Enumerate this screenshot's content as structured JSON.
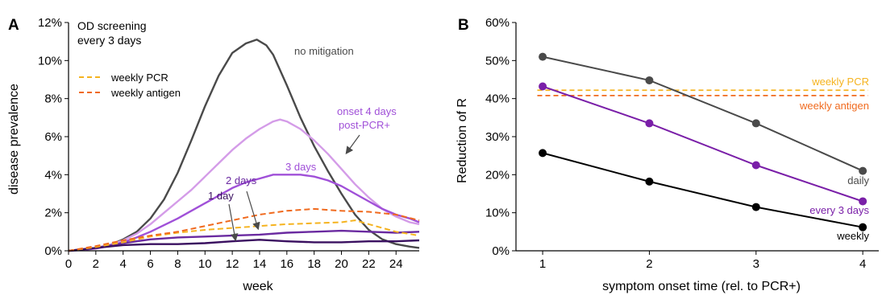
{
  "chart_data": [
    {
      "type": "line",
      "panel_label": "A",
      "xlabel": "week",
      "ylabel": "disease prevalence",
      "xlim": [
        0,
        25.7
      ],
      "ylim": [
        0,
        12
      ],
      "y_unit_suffix": "%",
      "x_ticks": [
        0,
        2,
        4,
        6,
        8,
        10,
        12,
        14,
        16,
        18,
        20,
        22,
        24
      ],
      "y_ticks": [
        0,
        2,
        4,
        6,
        8,
        10,
        12
      ],
      "legend_title": "OD screening\nevery 3 days",
      "legend_title_lines": [
        "OD screening",
        "every 3 days"
      ],
      "legend_placement": "top-left",
      "legend": [
        {
          "name": "weekly PCR",
          "color": "#f5b31f",
          "dashed": true
        },
        {
          "name": "weekly antigen",
          "color": "#f06a1e",
          "dashed": true
        }
      ],
      "series": [
        {
          "name": "no mitigation",
          "color": "#4a4a4a",
          "dashed": false,
          "x": [
            0,
            1,
            2,
            3,
            4,
            5,
            6,
            7,
            8,
            9,
            10,
            11,
            12,
            13,
            13.8,
            14.5,
            15,
            16,
            17,
            18,
            19,
            20,
            21,
            22,
            23,
            24,
            25,
            25.7
          ],
          "values": [
            0,
            0.05,
            0.15,
            0.3,
            0.6,
            1.0,
            1.7,
            2.7,
            4.1,
            5.8,
            7.6,
            9.2,
            10.4,
            10.9,
            11.1,
            10.8,
            10.3,
            8.7,
            7.0,
            5.5,
            4.2,
            3.0,
            1.9,
            1.1,
            0.6,
            0.35,
            0.22,
            0.15
          ]
        },
        {
          "name": "onset 4 days post-PCR+",
          "color": "#d49ce8",
          "dashed": false,
          "x": [
            0,
            1,
            2,
            3,
            4,
            5,
            6,
            7,
            8,
            9,
            10,
            11,
            12,
            13,
            14,
            15,
            15.5,
            16,
            17,
            18,
            19,
            20,
            21,
            22,
            23,
            24,
            25,
            25.7
          ],
          "values": [
            0,
            0.05,
            0.15,
            0.3,
            0.55,
            0.9,
            1.4,
            2.0,
            2.6,
            3.2,
            3.9,
            4.6,
            5.3,
            5.9,
            6.4,
            6.8,
            6.9,
            6.8,
            6.4,
            5.8,
            5.1,
            4.3,
            3.5,
            2.8,
            2.2,
            1.8,
            1.5,
            1.4
          ]
        },
        {
          "name": "3 days",
          "color": "#a050d8",
          "dashed": false,
          "x": [
            0,
            1,
            2,
            3,
            4,
            5,
            6,
            7,
            8,
            9,
            10,
            11,
            12,
            13,
            14,
            15,
            16,
            17,
            18,
            19,
            20,
            21,
            22,
            23,
            24,
            25,
            25.7
          ],
          "values": [
            0,
            0.04,
            0.12,
            0.25,
            0.45,
            0.7,
            1.0,
            1.35,
            1.7,
            2.1,
            2.5,
            2.9,
            3.3,
            3.6,
            3.8,
            4.0,
            4.0,
            4.0,
            3.9,
            3.7,
            3.4,
            3.0,
            2.6,
            2.2,
            1.9,
            1.7,
            1.5
          ]
        },
        {
          "name": "2 days",
          "color": "#6a2aa0",
          "dashed": false,
          "x": [
            0,
            2,
            4,
            6,
            8,
            10,
            12,
            14,
            16,
            18,
            20,
            22,
            24,
            25.7
          ],
          "values": [
            0,
            0.15,
            0.4,
            0.6,
            0.7,
            0.75,
            0.8,
            0.85,
            0.95,
            1.0,
            1.05,
            1.0,
            0.95,
            1.0
          ]
        },
        {
          "name": "1 day",
          "color": "#3a1060",
          "dashed": false,
          "x": [
            0,
            2,
            4,
            6,
            8,
            10,
            12,
            14,
            16,
            18,
            20,
            22,
            24,
            25.7
          ],
          "values": [
            0,
            0.15,
            0.3,
            0.35,
            0.35,
            0.4,
            0.5,
            0.58,
            0.5,
            0.45,
            0.45,
            0.5,
            0.5,
            0.55
          ]
        },
        {
          "name": "weekly PCR",
          "color": "#f5b31f",
          "dashed": true,
          "x": [
            0,
            2,
            4,
            6,
            8,
            10,
            12,
            14,
            16,
            18,
            20,
            21,
            22,
            24,
            25.7
          ],
          "values": [
            0,
            0.2,
            0.45,
            0.75,
            0.95,
            1.1,
            1.2,
            1.3,
            1.4,
            1.45,
            1.5,
            1.6,
            1.4,
            1.0,
            0.8
          ]
        },
        {
          "name": "weekly antigen",
          "color": "#f06a1e",
          "dashed": true,
          "x": [
            0,
            2,
            4,
            6,
            8,
            10,
            12,
            14,
            16,
            18,
            20,
            22,
            24,
            25.7
          ],
          "values": [
            0,
            0.25,
            0.55,
            0.8,
            1.0,
            1.3,
            1.6,
            1.9,
            2.1,
            2.2,
            2.1,
            2.05,
            1.9,
            1.6
          ]
        }
      ],
      "annotations": [
        {
          "text": "no mitigation",
          "color": "#4a4a4a"
        },
        {
          "text": "onset 4 days",
          "color": "#a050d8"
        },
        {
          "text": "post-PCR+",
          "color": "#a050d8"
        },
        {
          "text": "3 days",
          "color": "#a050d8"
        },
        {
          "text": "2 days",
          "color": "#6a2aa0"
        },
        {
          "text": "1 day",
          "color": "#3a1060"
        }
      ]
    },
    {
      "type": "line",
      "panel_label": "B",
      "xlabel": "symptom onset time (rel. to PCR+)",
      "ylabel": "Reduction of R",
      "xlim": [
        0.75,
        4.15
      ],
      "ylim": [
        0,
        60
      ],
      "y_unit_suffix": "%",
      "x_ticks": [
        1,
        2,
        3,
        4
      ],
      "y_ticks": [
        0,
        10,
        20,
        30,
        40,
        50,
        60
      ],
      "categories": [
        1,
        2,
        3,
        4
      ],
      "series": [
        {
          "name": "daily",
          "color": "#4a4a4a",
          "values": [
            51,
            44.8,
            33.5,
            21
          ]
        },
        {
          "name": "every 3 days",
          "color": "#7a1fa8",
          "values": [
            43.2,
            33.5,
            22.5,
            13
          ]
        },
        {
          "name": "weekly",
          "color": "#000000",
          "values": [
            25.7,
            18.2,
            11.5,
            6.2
          ]
        }
      ],
      "reference_lines": [
        {
          "name": "weekly PCR",
          "color": "#f5b31f",
          "value": 42.2,
          "dashed": true
        },
        {
          "name": "weekly antigen",
          "color": "#f06a1e",
          "value": 40.8,
          "dashed": true
        }
      ]
    }
  ]
}
